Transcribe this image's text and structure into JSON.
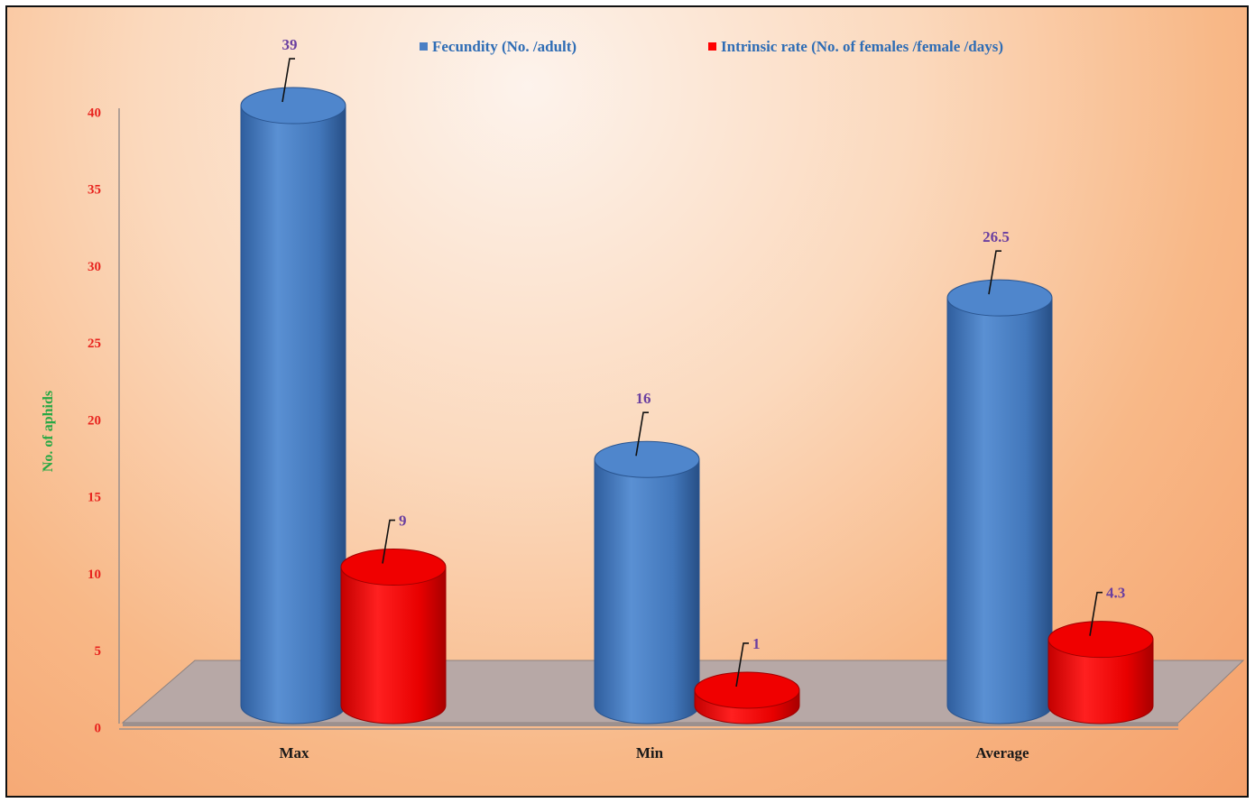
{
  "chart_data": {
    "type": "bar",
    "categories": [
      "Max",
      "Min",
      "Average"
    ],
    "series": [
      {
        "name": "Fecundity (No. /adult)",
        "color": "#4a7fc4",
        "values": [
          39,
          16,
          26.5
        ]
      },
      {
        "name": "Intrinsic rate (No. of females /female /days)",
        "color": "#ff0000",
        "values": [
          9,
          1,
          4.3
        ]
      }
    ],
    "data_labels": [
      [
        "39",
        "16",
        "26.5"
      ],
      [
        "9",
        "1",
        "4.3"
      ]
    ],
    "ylabel": "No. of aphids",
    "xlabel": "",
    "ylim": [
      0,
      40
    ],
    "yticks": [
      "0",
      "5",
      "10",
      "15",
      "20",
      "25",
      "30",
      "35",
      "40"
    ],
    "legend_position": "top",
    "style": "3d-cylinder",
    "grid": false
  }
}
